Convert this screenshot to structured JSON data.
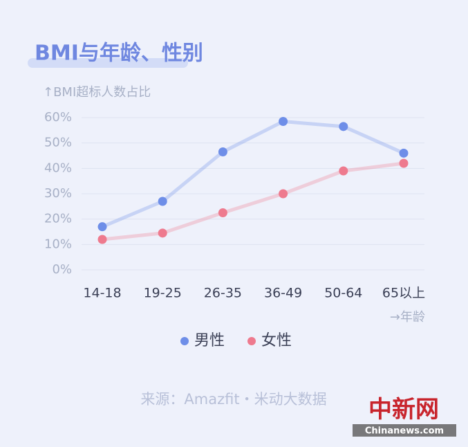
{
  "chart_data": {
    "type": "line",
    "title": "BMI与年龄、性别",
    "y_label": "↑BMI超标人数占比",
    "x_label": "→年龄",
    "categories": [
      "14-18",
      "19-25",
      "26-35",
      "36-49",
      "50-64",
      "65以上"
    ],
    "series": [
      {
        "name": "男性",
        "color": "#6e8ee8",
        "values": [
          17,
          27,
          46.5,
          58.5,
          56.5,
          46
        ]
      },
      {
        "name": "女性",
        "color": "#ee7a8e",
        "values": [
          12,
          14.5,
          22.5,
          30,
          39,
          42
        ]
      }
    ],
    "ylim": [
      0,
      60
    ],
    "yticks": [
      {
        "value": 0,
        "label": "0%"
      },
      {
        "value": 10,
        "label": "10%"
      },
      {
        "value": 20,
        "label": "20%"
      },
      {
        "value": 30,
        "label": "30%"
      },
      {
        "value": 40,
        "label": "40%"
      },
      {
        "value": 50,
        "label": "50%"
      },
      {
        "value": 60,
        "label": "60%"
      }
    ],
    "grid": true,
    "source": "来源：Amazfit・米动大数据",
    "watermark": "中新网",
    "watermark_site": "Chinanews.com"
  }
}
